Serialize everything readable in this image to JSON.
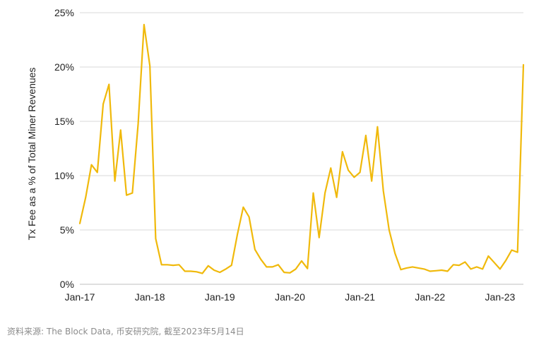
{
  "chart_data": {
    "type": "line",
    "title": "",
    "xlabel": "",
    "ylabel": "Tx Fee as a % of Total Miner Revenues",
    "ylim": [
      0,
      25
    ],
    "yticks": [
      "0%",
      "5%",
      "10%",
      "15%",
      "20%",
      "25%"
    ],
    "xticks": [
      "Jan-17",
      "Jan-18",
      "Jan-19",
      "Jan-20",
      "Jan-21",
      "Jan-22",
      "Jan-23"
    ],
    "grid": true,
    "line_color": "#F0B90B",
    "series": [
      {
        "values": [
          5.6,
          8.0,
          11.0,
          10.3,
          16.6,
          18.4,
          9.5,
          14.2,
          8.2,
          8.4,
          14.8,
          23.9,
          20.1,
          4.2,
          1.8,
          1.8,
          1.75,
          1.8,
          1.2,
          1.2,
          1.15,
          1.0,
          1.7,
          1.3,
          1.1,
          1.4,
          1.75,
          4.6,
          7.1,
          6.2,
          3.2,
          2.3,
          1.6,
          1.6,
          1.8,
          1.1,
          1.05,
          1.4,
          2.15,
          1.45,
          8.4,
          4.3,
          8.4,
          10.7,
          8.0,
          12.2,
          10.5,
          9.85,
          10.3,
          13.7,
          9.5,
          14.5,
          8.6,
          5.0,
          2.85,
          1.35,
          1.5,
          1.6,
          1.5,
          1.4,
          1.2,
          1.25,
          1.3,
          1.2,
          1.8,
          1.75,
          2.05,
          1.4,
          1.6,
          1.4,
          2.6,
          2.0,
          1.4,
          2.2,
          3.15,
          2.95,
          20.2
        ]
      }
    ]
  },
  "source_note": "资料来源: The Block Data, 币安研究院, 截至2023年5月14日"
}
